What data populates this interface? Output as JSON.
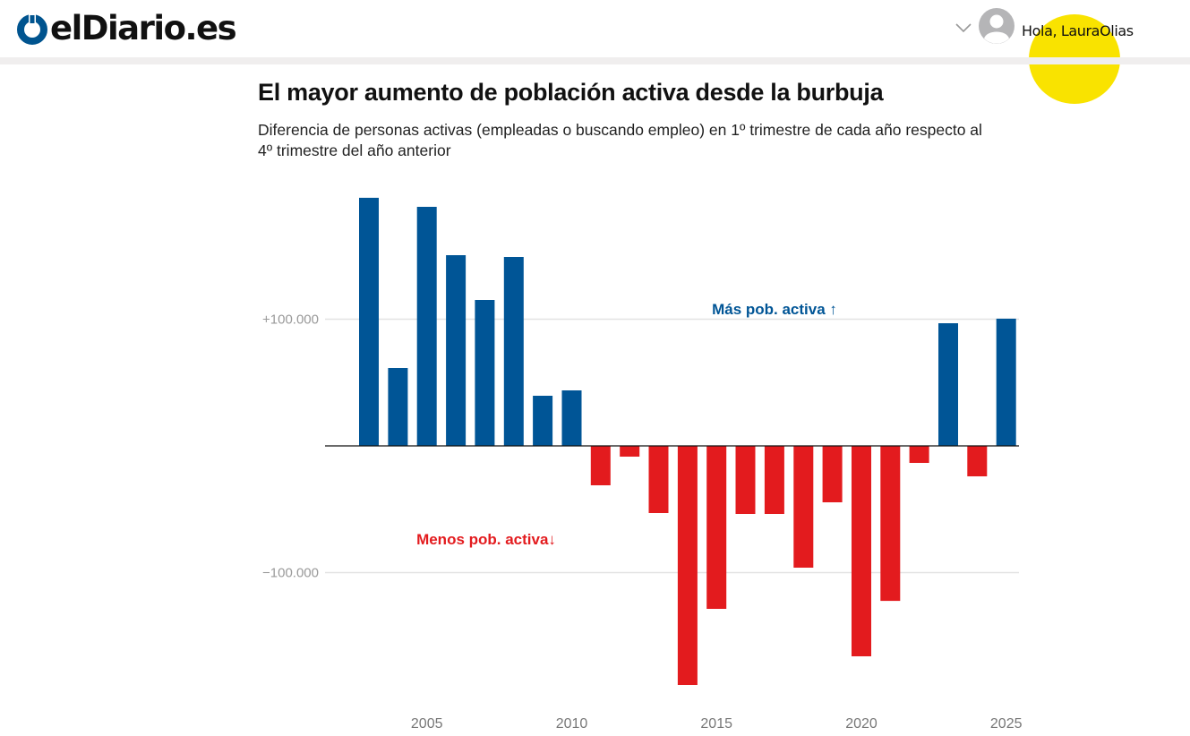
{
  "site": {
    "logo_text": "elDiario.es",
    "brand_color": "#00548f",
    "greeting": "Hola, LauraOlias",
    "icons": {
      "logo": "eldiario-logo-icon",
      "menu": "chevron-down-icon",
      "user": "user-avatar-icon"
    }
  },
  "colors": {
    "positive": "#005596",
    "negative": "#e31b1e",
    "gridline": "#e3e3e3",
    "axis": "#111111",
    "highlight": "#f9e300"
  },
  "chart_data": {
    "type": "bar",
    "title": "El mayor aumento de población activa desde la burbuja",
    "subtitle": "Diferencia de personas activas (empleadas o buscando empleo) en 1º trimestre de cada año respecto al 4º trimestre del año anterior",
    "xlabel": "",
    "ylabel": "",
    "categories": [
      "2003",
      "2004",
      "2005",
      "2006",
      "2007",
      "2008",
      "2009",
      "2010",
      "2011",
      "2012",
      "2013",
      "2014",
      "2015",
      "2016",
      "2017",
      "2018",
      "2019",
      "2020",
      "2021",
      "2022",
      "2023",
      "2024",
      "2025"
    ],
    "values": [
      195800,
      61500,
      188700,
      150500,
      115200,
      149100,
      39600,
      43800,
      -31100,
      -8500,
      -53000,
      -188700,
      -128600,
      -53700,
      -53700,
      -96100,
      -44500,
      -166100,
      -122300,
      -13400,
      96800,
      -24000,
      100400
    ],
    "ylim": [
      -200000,
      200000
    ],
    "y_ticks": [
      {
        "value": 100000,
        "label": "+100.000"
      },
      {
        "value": -100000,
        "label": "−100.000"
      }
    ],
    "x_ticks": [
      "2005",
      "2010",
      "2015",
      "2020",
      "2025"
    ],
    "annotations": [
      {
        "text": "Más pob. activa ↑",
        "series": "positive"
      },
      {
        "text": "Menos pob. activa↓",
        "series": "negative"
      }
    ],
    "grid": true,
    "legend": "none"
  }
}
